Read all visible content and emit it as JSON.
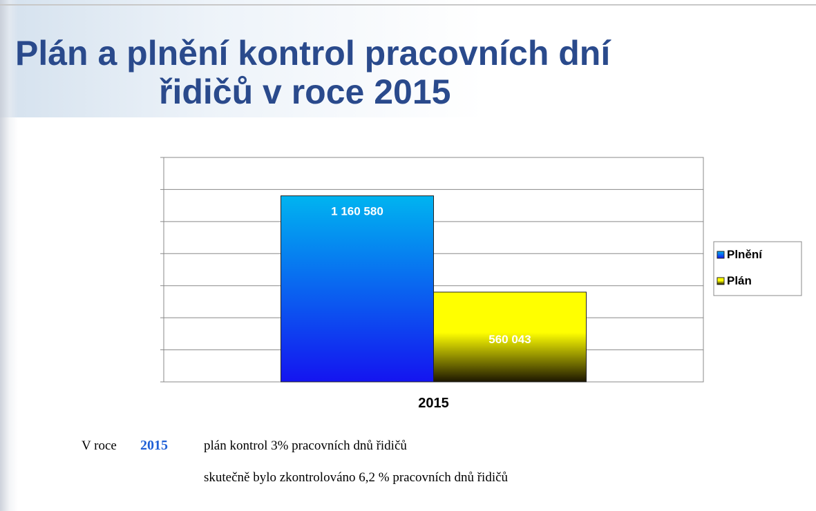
{
  "chart_data": {
    "type": "bar",
    "title": [
      "Plán a plnění kontrol pracovních dní",
      "řidičů v roce 2015"
    ],
    "categories": [
      "2015"
    ],
    "series": [
      {
        "name": "Plnění",
        "color": "#00b4f0",
        "values": [
          1160580
        ],
        "value_labels": [
          "1 160 580"
        ]
      },
      {
        "name": "Plán",
        "color": "#ffff00",
        "values": [
          560043
        ],
        "value_labels": [
          "560 043"
        ]
      }
    ],
    "ylim": [
      0,
      1400000
    ],
    "yticks": [
      0,
      200000,
      400000,
      600000,
      800000,
      1000000,
      1200000,
      1400000
    ],
    "grid": true,
    "legend": "right"
  },
  "notes": {
    "prefix": "V roce",
    "year": "2015",
    "line1": "plán kontrol 3%  pracovních dnů řidičů",
    "line2": "skutečně bylo zkontrolováno 6,2 % pracovních dnů řidičů"
  }
}
